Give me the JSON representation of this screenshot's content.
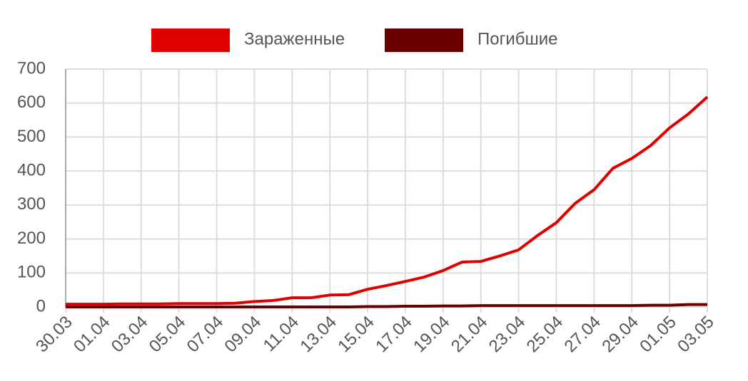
{
  "chart_data": {
    "type": "line",
    "categories": [
      "30.03",
      null,
      "01.04",
      null,
      "03.04",
      null,
      "05.04",
      null,
      "07.04",
      null,
      "09.04",
      null,
      "11.04",
      null,
      "13.04",
      null,
      "15.04",
      null,
      "17.04",
      null,
      "19.04",
      null,
      "21.04",
      null,
      "23.04",
      null,
      "25.04",
      null,
      "27.04",
      null,
      "29.04",
      null,
      "01.05",
      null,
      "03.05"
    ],
    "series": [
      {
        "name": "Зараженные",
        "color": "#e00000",
        "values": [
          8,
          8,
          8,
          9,
          9,
          9,
          10,
          10,
          10,
          11,
          16,
          19,
          27,
          27,
          35,
          36,
          52,
          63,
          75,
          88,
          107,
          132,
          134,
          150,
          168,
          210,
          248,
          305,
          345,
          408,
          437,
          475,
          527,
          568,
          618
        ]
      },
      {
        "name": "Погибшие",
        "color": "#6b0000",
        "values": [
          0,
          0,
          0,
          0,
          0,
          0,
          0,
          0,
          0,
          0,
          0,
          0,
          0,
          0,
          0,
          0,
          1,
          1,
          2,
          2,
          3,
          3,
          4,
          4,
          4,
          4,
          4,
          4,
          4,
          4,
          4,
          5,
          5,
          7,
          7
        ]
      }
    ],
    "ylim": [
      0,
      700
    ],
    "yticks": [
      0,
      100,
      200,
      300,
      400,
      500,
      600,
      700
    ],
    "grid": true,
    "legend": "top"
  }
}
